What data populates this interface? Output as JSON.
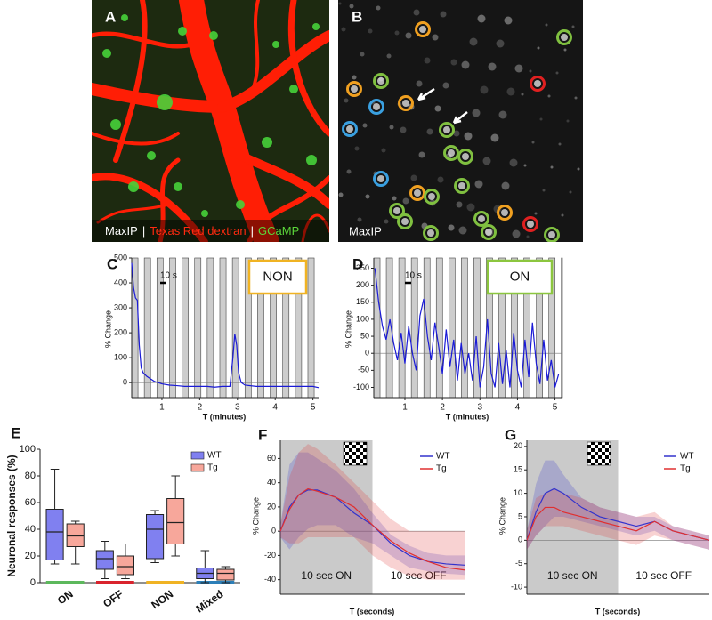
{
  "figure": {
    "images": [
      {
        "panel": "A",
        "caption": [
          "MaxIP",
          "|",
          "Texas Red dextran",
          "|",
          "GCaMP"
        ]
      },
      {
        "panel": "B",
        "caption": [
          "MaxIP"
        ]
      }
    ]
  },
  "chart_data": [
    {
      "type": "line",
      "panel": "C",
      "ylabel": "% Change",
      "xlabel": "T (minutes)",
      "status_label": "NON",
      "status_color": "#f0b323",
      "scale_bar": "10 s",
      "xlim": [
        0.2,
        5.15
      ],
      "ylim": [
        -60,
        500
      ],
      "xticks": [
        1,
        2,
        3,
        4,
        5
      ],
      "yticks": [
        0,
        100,
        200,
        300,
        400,
        500
      ],
      "x": [
        0.2,
        0.25,
        0.3,
        0.35,
        0.4,
        0.45,
        0.5,
        0.6,
        0.7,
        0.8,
        0.9,
        1.0,
        1.2,
        1.4,
        1.6,
        1.8,
        2.0,
        2.2,
        2.4,
        2.6,
        2.8,
        2.88,
        2.93,
        2.98,
        3.03,
        3.1,
        3.2,
        3.5,
        4.0,
        4.5,
        5.0,
        5.15
      ],
      "series": [
        {
          "color": "#1a1ad6",
          "values": [
            480,
            380,
            340,
            330,
            150,
            60,
            40,
            25,
            15,
            5,
            0,
            -5,
            -10,
            -12,
            -15,
            -15,
            -15,
            -15,
            -18,
            -15,
            -15,
            100,
            195,
            150,
            40,
            0,
            -10,
            -15,
            -15,
            -15,
            -15,
            -20
          ]
        }
      ]
    },
    {
      "type": "line",
      "panel": "D",
      "ylabel": "% Change",
      "xlabel": "T (minutes)",
      "status_label": "ON",
      "status_color": "#8cc63f",
      "scale_bar": "10 s",
      "xlim": [
        0.17,
        5.2
      ],
      "ylim": [
        -130,
        280
      ],
      "xticks": [
        1,
        2,
        3,
        4,
        5
      ],
      "yticks": [
        -100,
        -50,
        0,
        50,
        100,
        150,
        200,
        250
      ],
      "x": [
        0.2,
        0.3,
        0.4,
        0.5,
        0.6,
        0.7,
        0.8,
        0.9,
        1.0,
        1.1,
        1.2,
        1.3,
        1.4,
        1.5,
        1.6,
        1.7,
        1.8,
        1.9,
        2.0,
        2.1,
        2.2,
        2.3,
        2.4,
        2.5,
        2.6,
        2.7,
        2.8,
        2.9,
        3.0,
        3.1,
        3.2,
        3.3,
        3.4,
        3.5,
        3.6,
        3.7,
        3.8,
        3.9,
        4.0,
        4.1,
        4.2,
        4.3,
        4.4,
        4.5,
        4.6,
        4.7,
        4.8,
        4.9,
        5.0,
        5.1
      ],
      "series": [
        {
          "color": "#1a1ad6",
          "values": [
            250,
            150,
            80,
            40,
            100,
            30,
            -20,
            60,
            -30,
            80,
            0,
            -50,
            110,
            160,
            50,
            -20,
            90,
            20,
            -60,
            70,
            -40,
            40,
            -80,
            30,
            -60,
            0,
            -80,
            50,
            -100,
            -40,
            100,
            -60,
            -100,
            30,
            -90,
            10,
            -100,
            60,
            -50,
            -100,
            40,
            -70,
            90,
            -30,
            -90,
            40,
            -80,
            -20,
            -100,
            -60
          ]
        }
      ]
    },
    {
      "type": "box",
      "panel": "E",
      "ylabel": "Neuronal responses (%)",
      "categories": [
        "ON",
        "OFF",
        "NON",
        "Mixed"
      ],
      "ylim": [
        0,
        100
      ],
      "yticks": [
        0,
        20,
        40,
        60,
        80,
        100
      ],
      "series": [
        {
          "name": "WT",
          "color": "#8080f0",
          "values": [
            [
              14,
              17,
              38,
              55,
              85
            ],
            [
              3,
              10,
              18,
              24,
              31
            ],
            [
              15,
              18,
              40,
              51,
              54
            ],
            [
              0,
              3,
              7,
              11,
              24
            ]
          ]
        },
        {
          "name": "Tg",
          "color": "#f7a79b",
          "values": [
            [
              14,
              27,
              35,
              44,
              46
            ],
            [
              3,
              6,
              12,
              20,
              29
            ],
            [
              20,
              29,
              45,
              63,
              80
            ],
            [
              0,
              2,
              7,
              10,
              12
            ]
          ]
        }
      ]
    },
    {
      "type": "line",
      "panel": "F",
      "ylabel": "% Change",
      "xlabel": "T (seconds)",
      "annotations": [
        "10 sec ON",
        "10 sec OFF"
      ],
      "xlim": [
        0,
        20
      ],
      "ylim": [
        -52,
        75
      ],
      "yticks": [
        -40,
        -20,
        0,
        20,
        40,
        60
      ],
      "x": [
        0,
        1,
        2,
        3,
        4,
        6,
        8,
        10,
        12,
        14,
        16,
        18,
        20
      ],
      "series": [
        {
          "name": "WT",
          "color": "#3333cc",
          "values": [
            0,
            20,
            30,
            34,
            34,
            28,
            15,
            5,
            -10,
            -20,
            -25,
            -27,
            -28
          ],
          "upper": [
            5,
            55,
            65,
            65,
            60,
            50,
            35,
            15,
            -3,
            -12,
            -18,
            -20,
            -20
          ],
          "lower": [
            -5,
            -15,
            -5,
            2,
            5,
            5,
            -5,
            -10,
            -20,
            -30,
            -33,
            -35,
            -36
          ]
        },
        {
          "name": "Tg",
          "color": "#e03030",
          "values": [
            0,
            18,
            30,
            35,
            33,
            28,
            20,
            5,
            -8,
            -18,
            -25,
            -30,
            -32
          ],
          "upper": [
            5,
            45,
            65,
            72,
            68,
            55,
            40,
            25,
            10,
            0,
            0,
            0,
            0
          ],
          "lower": [
            -5,
            -10,
            -10,
            -5,
            -5,
            -5,
            -5,
            -20,
            -30,
            -37,
            -40,
            -40,
            -40
          ]
        }
      ]
    },
    {
      "type": "line",
      "panel": "G",
      "ylabel": "% Change",
      "xlabel": "T (seconds)",
      "annotations": [
        "10 sec ON",
        "10 sec OFF"
      ],
      "xlim": [
        0,
        20
      ],
      "ylim": [
        -11.5,
        21.3
      ],
      "yticks": [
        -10,
        -5,
        0,
        5,
        10,
        15,
        20
      ],
      "x": [
        0,
        1,
        2,
        3,
        4,
        6,
        8,
        10,
        12,
        14,
        16,
        18,
        20
      ],
      "series": [
        {
          "name": "WT",
          "color": "#3333cc",
          "values": [
            0,
            6,
            10,
            11,
            10,
            7,
            5,
            4,
            3,
            4,
            2,
            1,
            0
          ],
          "upper": [
            2,
            12,
            17,
            17,
            14,
            9,
            7,
            6,
            5,
            5,
            3,
            2,
            1
          ],
          "lower": [
            -2,
            1,
            3,
            5,
            5,
            4,
            3,
            2,
            1,
            2,
            0,
            -1,
            -2
          ]
        },
        {
          "name": "Tg",
          "color": "#e03030",
          "values": [
            0,
            5,
            7,
            7,
            6,
            5,
            4,
            3,
            2,
            4,
            2,
            1,
            0
          ],
          "upper": [
            2,
            9,
            10,
            11,
            10,
            9,
            7,
            6,
            5,
            6,
            3,
            2,
            1
          ],
          "lower": [
            -2,
            1,
            3,
            3,
            3,
            2,
            1,
            0,
            -1,
            1,
            0,
            -1,
            -2
          ]
        }
      ]
    }
  ]
}
